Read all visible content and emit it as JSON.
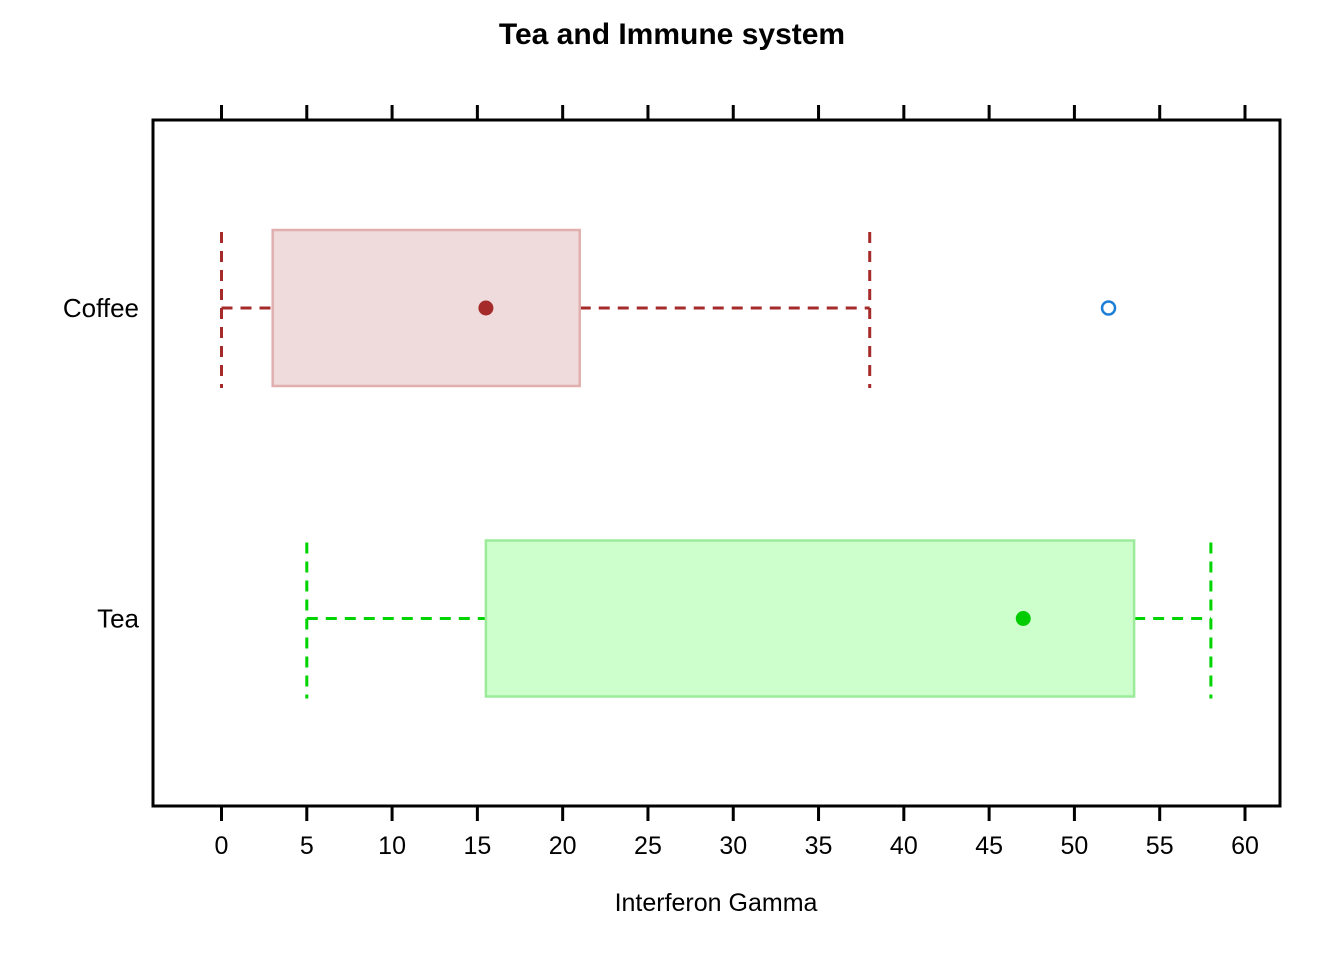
{
  "chart_data": {
    "type": "boxplot",
    "orientation": "horizontal",
    "title": "Tea and Immune system",
    "xlabel": "Interferon Gamma",
    "background": "#FFFFFF",
    "grid": false,
    "line_style": "dashed",
    "x_axis": {
      "min": 0,
      "max": 60,
      "tick_step": 5,
      "ticks": [
        0,
        5,
        10,
        15,
        20,
        25,
        30,
        35,
        40,
        45,
        50,
        55,
        60
      ],
      "tick_sides": [
        "bottom",
        "top"
      ]
    },
    "categories": [
      "Coffee",
      "Tea"
    ],
    "groups": [
      {
        "label": "Coffee",
        "stats": {
          "whisker_low": 0,
          "q1": 3,
          "median": 15.5,
          "q3": 21,
          "whisker_high": 38
        },
        "outliers": [
          52
        ],
        "colors": {
          "line": "#A52A2A",
          "box_fill": "#EFDBDB",
          "box_border": "#E2AFAF",
          "median_dot": "#A52A2A",
          "outlier": "#1E7FD6"
        }
      },
      {
        "label": "Tea",
        "stats": {
          "whisker_low": 5,
          "q1": 15.5,
          "median": 47,
          "q3": 53.5,
          "whisker_high": 58
        },
        "outliers": [],
        "colors": {
          "line": "#00D400",
          "box_fill": "#CCFFCC",
          "box_border": "#9BEB9B",
          "median_dot": "#00CC00",
          "outlier": "#1E7FD6"
        }
      }
    ]
  }
}
